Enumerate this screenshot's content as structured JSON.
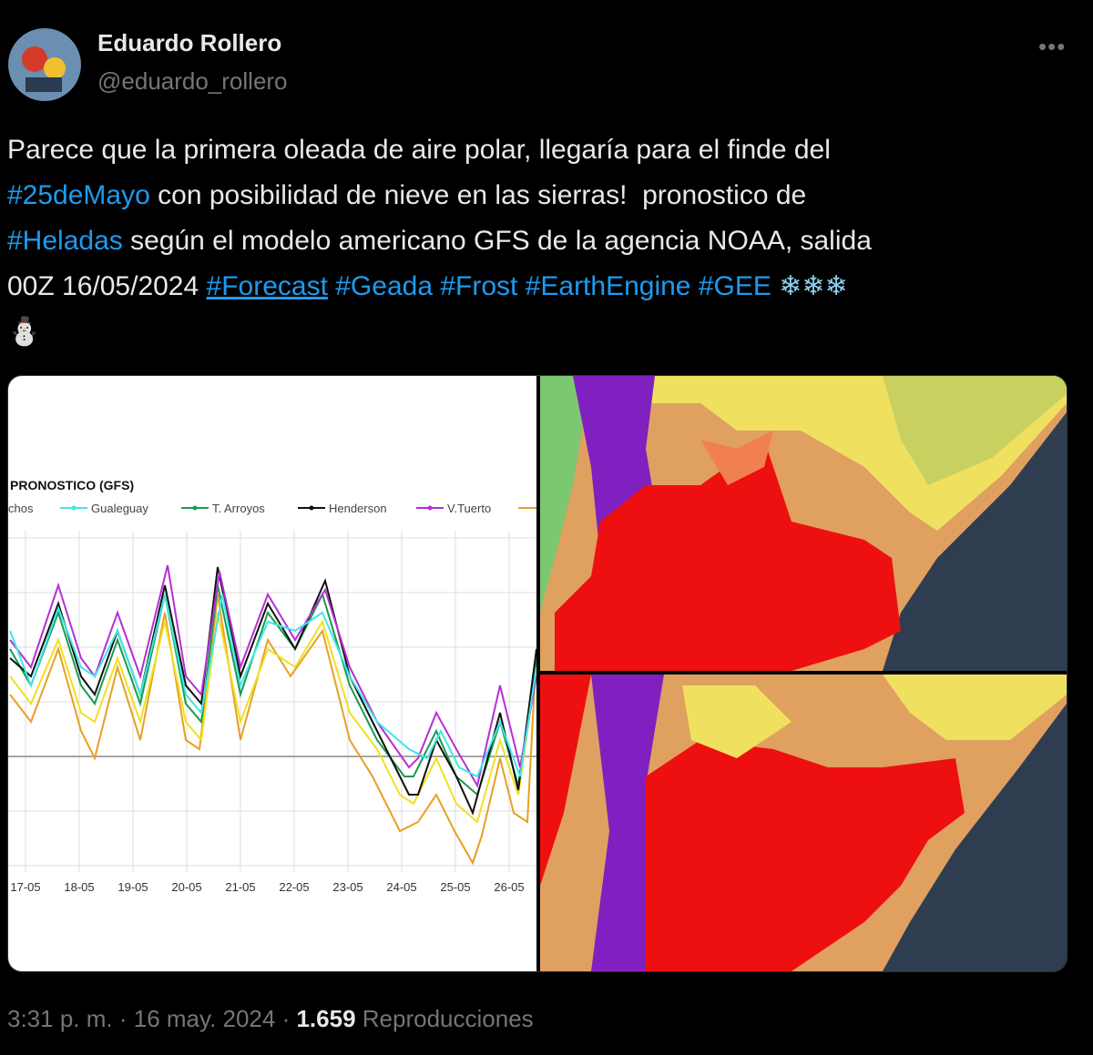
{
  "author": {
    "name": "Eduardo Rollero",
    "handle": "@eduardo_rollero"
  },
  "tweet": {
    "lines": [
      [
        "Parece que la primera oleada de aire polar, llegaría para el finde del"
      ],
      [
        "#25deMayo",
        " con posibilidad de nieve en las sierras!  pronostico de"
      ],
      [
        "#Heladas",
        " según el modelo americano GFS de la agencia NOAA, salida"
      ],
      [
        "00Z 16/05/2024 ",
        "#Forecast",
        " #Geada #Frost #EarthEngine #GEE",
        " ❄❄❄"
      ],
      [
        "⛄"
      ]
    ]
  },
  "image": {
    "chart": {
      "title": "PRONOSTICO (GFS)",
      "legend": [
        "chos",
        "Gualeguay",
        "T. Arroyos",
        "Henderson",
        "V.Tuerto"
      ],
      "categories": [
        "17-05",
        "18-05",
        "19-05",
        "20-05",
        "21-05",
        "22-05",
        "23-05",
        "24-05",
        "25-05",
        "26-05"
      ]
    }
  },
  "footer": {
    "time": "3:31 p. m.",
    "date": "16 may. 2024",
    "views": "1.659",
    "views_label": "Reproducciones"
  }
}
